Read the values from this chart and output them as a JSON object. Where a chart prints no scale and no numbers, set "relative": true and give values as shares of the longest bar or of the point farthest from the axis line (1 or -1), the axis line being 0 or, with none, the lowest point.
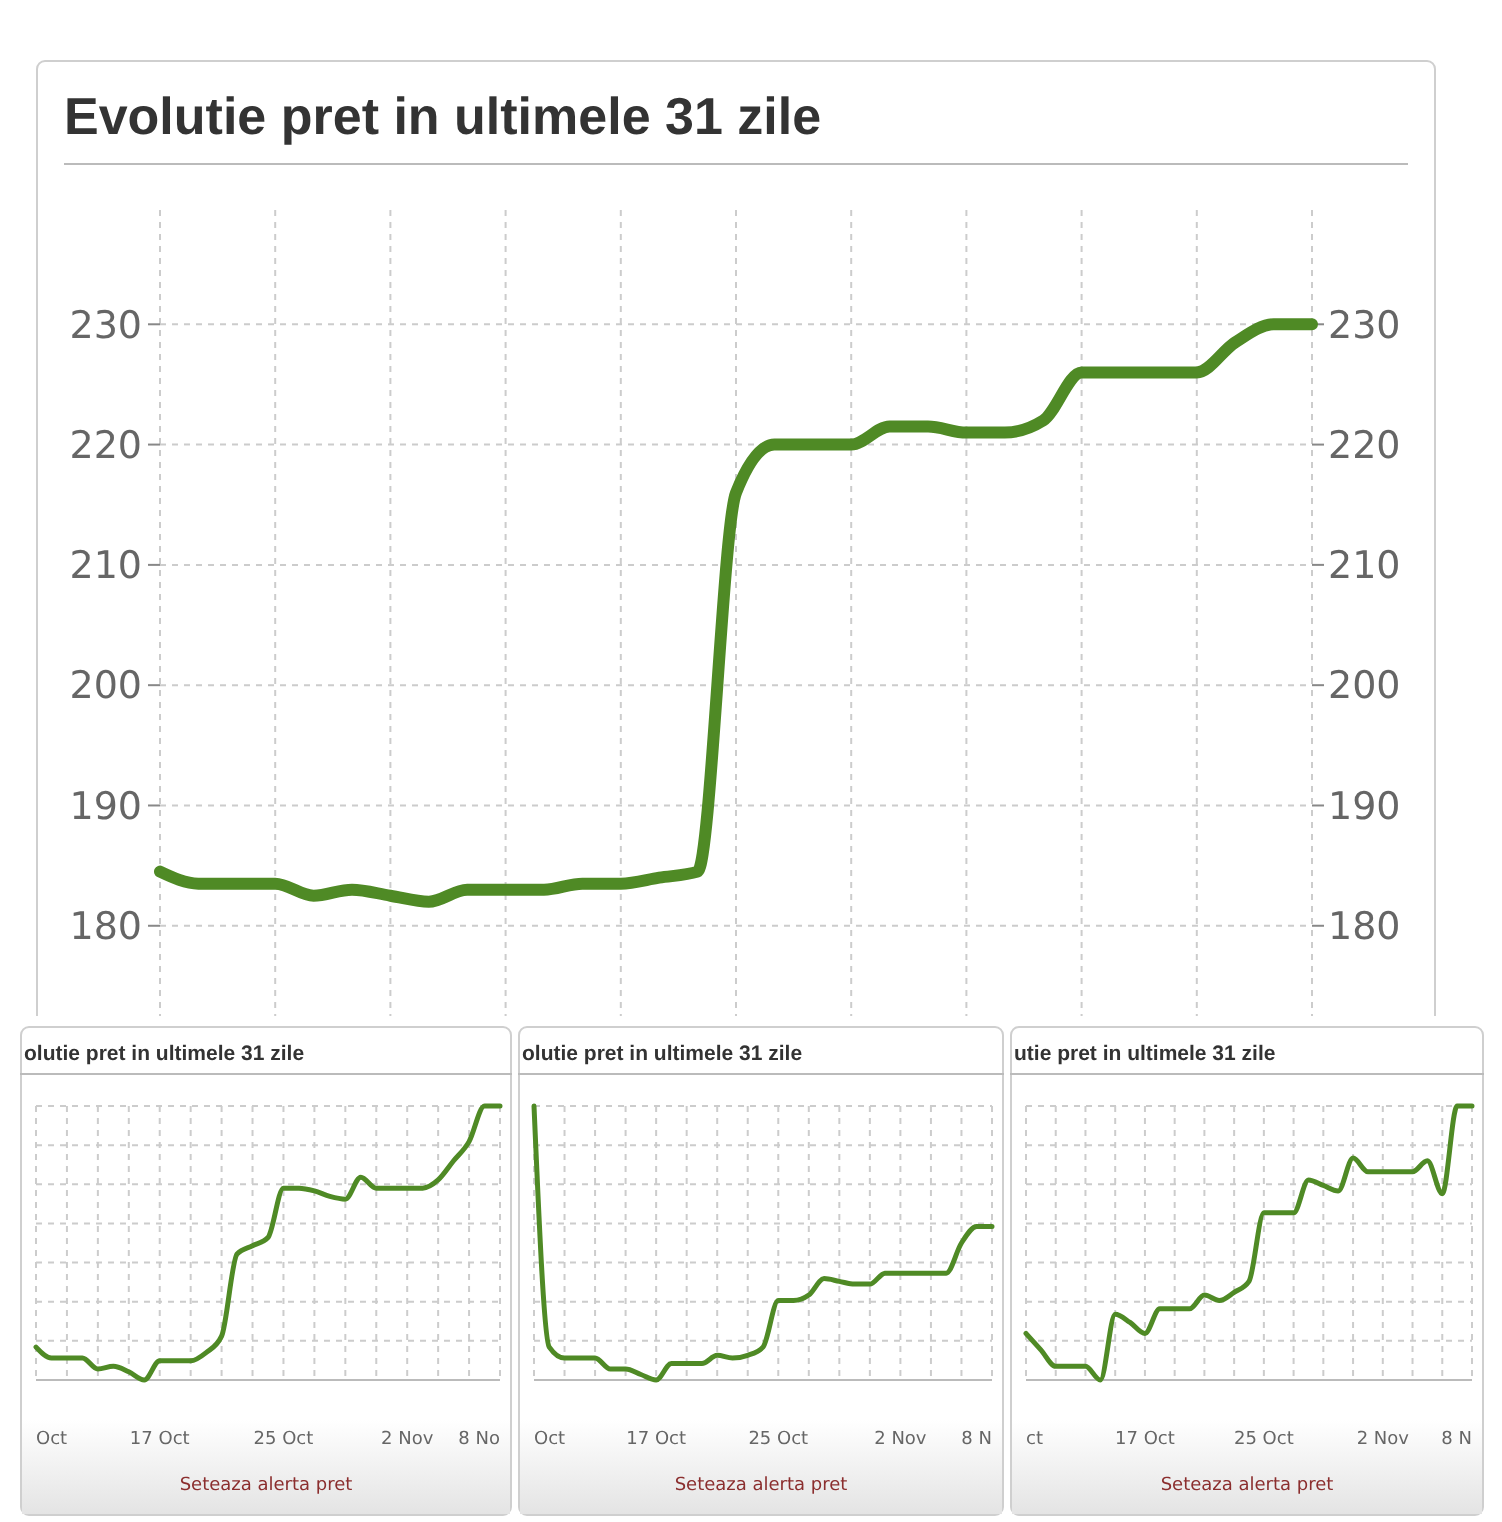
{
  "chart_data": [
    {
      "type": "line",
      "title": "Evolutie pret in ultimele 31 zile",
      "categories": [
        null,
        null,
        null,
        null,
        null,
        null,
        null,
        null,
        null,
        null,
        null,
        null,
        null,
        null,
        null,
        null,
        null,
        null,
        null,
        null,
        null,
        null,
        null,
        null,
        null,
        null,
        null,
        null,
        null,
        null,
        null
      ],
      "series": [
        {
          "color": "#4f8a25",
          "values": [
            184.5,
            183.5,
            183.5,
            183.5,
            182.5,
            183,
            182.5,
            182,
            183,
            183,
            183,
            183.5,
            183.5,
            184,
            184.5,
            216,
            220,
            220,
            220,
            221.5,
            221.5,
            221,
            221,
            222,
            226,
            226,
            226,
            226,
            228.5,
            230,
            230
          ]
        }
      ],
      "ylim": [
        172.5,
        239.5
      ],
      "yticks": [
        180,
        190,
        200,
        210,
        220,
        230
      ],
      "y2lim": [
        172.5,
        239.5
      ],
      "y2ticks": [
        180,
        190,
        200,
        210,
        220,
        230
      ],
      "grid": true,
      "line_style": "solid"
    },
    {
      "type": "line",
      "title": "olutie pret in ultimele 31 zile",
      "relative": true,
      "categories": [
        "Oct",
        null,
        null,
        null,
        null,
        null,
        null,
        null,
        "17 Oct",
        null,
        null,
        null,
        null,
        null,
        null,
        null,
        "25 Oct",
        null,
        null,
        null,
        null,
        null,
        null,
        null,
        "2 Nov",
        null,
        null,
        null,
        null,
        null,
        "8 No"
      ],
      "series": [
        {
          "color": "#4f8a25",
          "values": [
            0.12,
            0.08,
            0.08,
            0.08,
            0.04,
            0.05,
            0.03,
            0,
            0.07,
            0.07,
            0.07,
            0.1,
            0.16,
            0.46,
            0.49,
            0.52,
            0.7,
            0.7,
            0.69,
            0.67,
            0.66,
            0.74,
            0.7,
            0.7,
            0.7,
            0.7,
            0.73,
            0.8,
            0.87,
            1,
            1
          ]
        }
      ],
      "grid": true,
      "annotations": [
        "Seteaza alerta pret"
      ]
    },
    {
      "type": "line",
      "title": "olutie pret in ultimele 31 zile",
      "relative": true,
      "categories": [
        "Oct",
        null,
        null,
        null,
        null,
        null,
        null,
        null,
        "17 Oct",
        null,
        null,
        null,
        null,
        null,
        null,
        null,
        "25 Oct",
        null,
        null,
        null,
        null,
        null,
        null,
        null,
        "2 Nov",
        null,
        null,
        null,
        null,
        null,
        "8 N"
      ],
      "series": [
        {
          "color": "#4f8a25",
          "values": [
            1,
            0.12,
            0.08,
            0.08,
            0.08,
            0.04,
            0.04,
            0.02,
            0,
            0.06,
            0.06,
            0.06,
            0.09,
            0.08,
            0.09,
            0.12,
            0.29,
            0.29,
            0.31,
            0.37,
            0.36,
            0.35,
            0.35,
            0.39,
            0.39,
            0.39,
            0.39,
            0.39,
            0.5,
            0.56,
            0.56
          ]
        }
      ],
      "grid": true,
      "annotations": [
        "Seteaza alerta pret"
      ]
    },
    {
      "type": "line",
      "title": "utie pret in ultimele 31 zile",
      "relative": true,
      "categories": [
        "ct",
        null,
        null,
        null,
        null,
        null,
        null,
        null,
        "17 Oct",
        null,
        null,
        null,
        null,
        null,
        null,
        null,
        "25 Oct",
        null,
        null,
        null,
        null,
        null,
        null,
        null,
        "2 Nov",
        null,
        null,
        null,
        null,
        null,
        "8 N"
      ],
      "series": [
        {
          "color": "#4f8a25",
          "values": [
            0.17,
            0.11,
            0.05,
            0.05,
            0.05,
            0,
            0.24,
            0.21,
            0.17,
            0.26,
            0.26,
            0.26,
            0.31,
            0.29,
            0.32,
            0.36,
            0.61,
            0.61,
            0.61,
            0.73,
            0.71,
            0.69,
            0.81,
            0.76,
            0.76,
            0.76,
            0.76,
            0.8,
            0.68,
            1,
            1
          ]
        }
      ],
      "grid": true,
      "annotations": [
        "Seteaza alerta pret"
      ]
    }
  ]
}
